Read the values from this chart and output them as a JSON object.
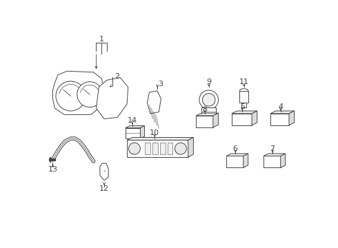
{
  "bg_color": "#ffffff",
  "fig_width": 4.9,
  "fig_height": 3.6,
  "dpi": 100,
  "line_color": "#444444",
  "lw": 0.7
}
